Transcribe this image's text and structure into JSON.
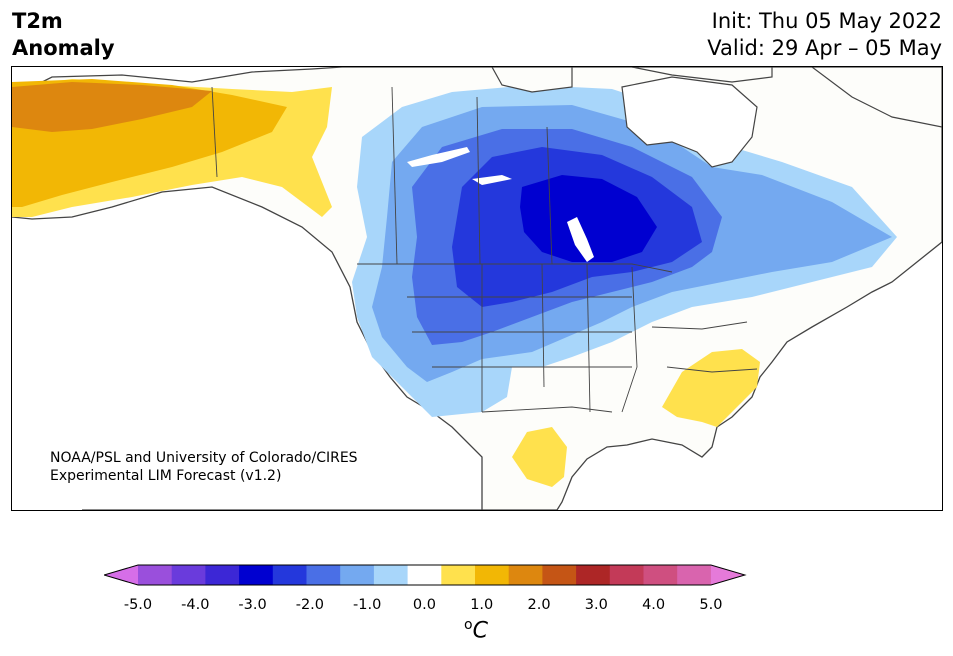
{
  "header": {
    "variable": "T2m",
    "subtitle": "Anomaly",
    "init": "Init: Thu 05 May 2022",
    "valid": "Valid: 29 Apr – 05 May"
  },
  "credit": {
    "line1": "NOAA/PSL and University of Colorado/CIRES",
    "line2": "Experimental LIM Forecast (v1.2)"
  },
  "colorbar": {
    "ticks": [
      "-5.0",
      "-4.0",
      "-3.0",
      "-2.0",
      "-1.0",
      "0.0",
      "1.0",
      "2.0",
      "3.0",
      "4.0",
      "5.0"
    ],
    "unit_prefix": "o",
    "unit": "C",
    "colors": [
      "#d66ee8",
      "#9a4fdc",
      "#6a3bdc",
      "#3c27d6",
      "#0000d0",
      "#2438dc",
      "#4a6fe6",
      "#74a9f0",
      "#a8d6fa",
      "#ffffff",
      "#ffe14d",
      "#f2b705",
      "#dd870f",
      "#c55515",
      "#ad2626",
      "#c33a58",
      "#cf4f80",
      "#d964ae",
      "#e57ad9"
    ]
  },
  "legend_colors": {
    "land": "#fdfdfa",
    "cool_light": "#a8d6fa",
    "cool_mid": "#74a9f0",
    "cool": "#4a6fe6",
    "cold": "#2438dc",
    "coldest": "#0000d0",
    "warm_light": "#ffe14d",
    "warm": "#f2b705",
    "warmer": "#dd870f"
  }
}
